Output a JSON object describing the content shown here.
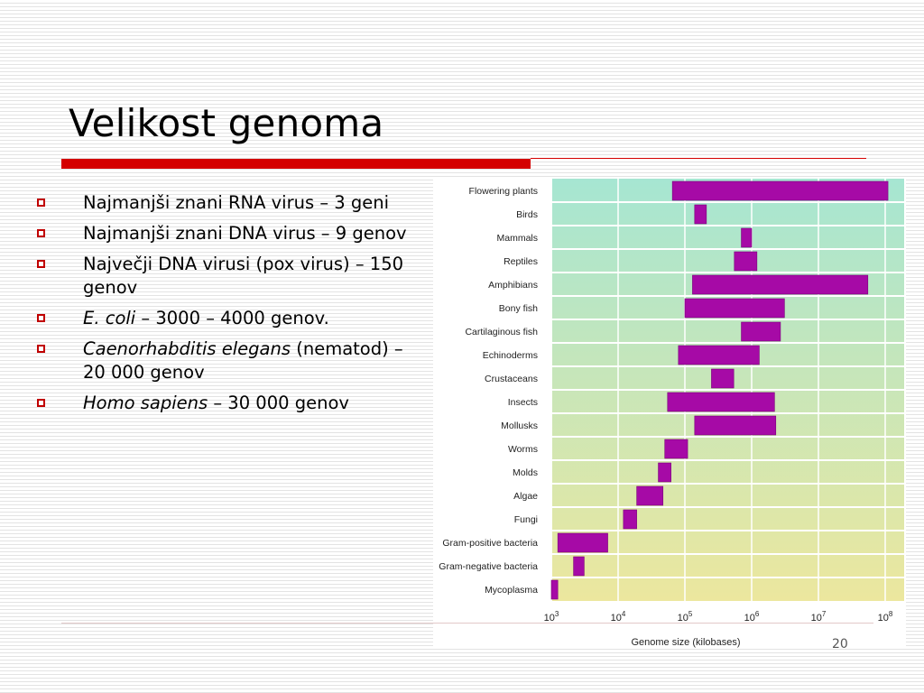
{
  "slide": {
    "title": "Velikost genoma",
    "page_number": "20"
  },
  "bullets": [
    {
      "parts": [
        {
          "text": "Najmanjši znani RNA virus – 3 geni",
          "italic": false
        }
      ]
    },
    {
      "parts": [
        {
          "text": "Najmanjši znani DNA virus – 9 genov",
          "italic": false
        }
      ]
    },
    {
      "parts": [
        {
          "text": "Največji DNA virusi (pox virus) – 150 genov",
          "italic": false
        }
      ]
    },
    {
      "parts": [
        {
          "text": "E. coli",
          "italic": true
        },
        {
          "text": " – 3000 – 4000 genov.",
          "italic": false
        }
      ]
    },
    {
      "parts": [
        {
          "text": "Caenorhabditis elegans",
          "italic": true
        },
        {
          "text": " (nematod) – 20 000 genov",
          "italic": false
        }
      ]
    },
    {
      "parts": [
        {
          "text": "Homo sapiens",
          "italic": true
        },
        {
          "text": " – 30 000 genov",
          "italic": false
        }
      ]
    }
  ],
  "colors": {
    "accent": "#d40000",
    "bar": "#a60aa6",
    "bar_stroke": "#7a007a",
    "gradient_top": "#a6e6d2",
    "gradient_bottom": "#ece79e"
  },
  "chart_data": {
    "type": "bar",
    "orientation": "horizontal-range",
    "xscale": "log",
    "xlabel": "Genome size (kilobases)",
    "ylabel": "",
    "xlim": [
      1000,
      130000000
    ],
    "xticks": [
      {
        "value": 1000,
        "base": "10",
        "exp": "3"
      },
      {
        "value": 10000,
        "base": "10",
        "exp": "4"
      },
      {
        "value": 100000,
        "base": "10",
        "exp": "5"
      },
      {
        "value": 1000000,
        "base": "10",
        "exp": "6"
      },
      {
        "value": 10000000,
        "base": "10",
        "exp": "7"
      },
      {
        "value": 100000000,
        "base": "10",
        "exp": "8"
      }
    ],
    "grid": true,
    "series": [
      {
        "category": "Flowering plants",
        "min": 65000,
        "max": 110000000
      },
      {
        "category": "Birds",
        "min": 140000,
        "max": 210000
      },
      {
        "category": "Mammals",
        "min": 700000,
        "max": 1000000
      },
      {
        "category": "Reptiles",
        "min": 550000,
        "max": 1200000
      },
      {
        "category": "Amphibians",
        "min": 130000,
        "max": 55000000
      },
      {
        "category": "Bony fish",
        "min": 100000,
        "max": 3100000
      },
      {
        "category": "Cartilaginous fish",
        "min": 700000,
        "max": 2700000
      },
      {
        "category": "Echinoderms",
        "min": 80000,
        "max": 1300000
      },
      {
        "category": "Crustaceans",
        "min": 250000,
        "max": 540000
      },
      {
        "category": "Insects",
        "min": 55000,
        "max": 2200000
      },
      {
        "category": "Mollusks",
        "min": 140000,
        "max": 2300000
      },
      {
        "category": "Worms",
        "min": 50000,
        "max": 110000
      },
      {
        "category": "Molds",
        "min": 40000,
        "max": 62000
      },
      {
        "category": "Algae",
        "min": 19000,
        "max": 47000
      },
      {
        "category": "Fungi",
        "min": 12000,
        "max": 19000
      },
      {
        "category": "Gram-positive bacteria",
        "min": 1250,
        "max": 7000
      },
      {
        "category": "Gram-negative bacteria",
        "min": 2150,
        "max": 3100
      },
      {
        "category": "Mycoplasma",
        "min": 1000,
        "max": 1250
      }
    ]
  }
}
